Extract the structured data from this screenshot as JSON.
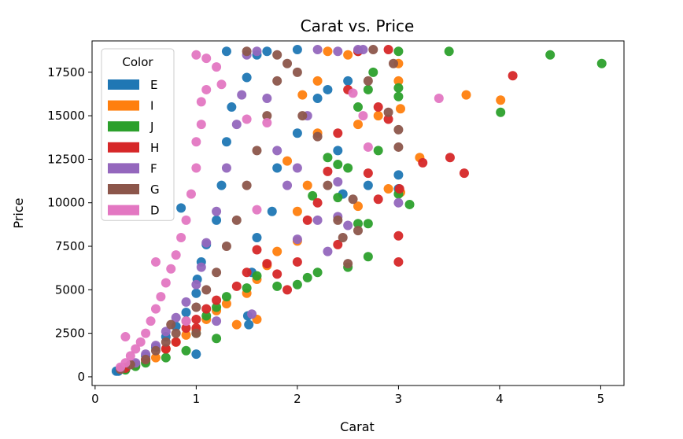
{
  "chart_data": {
    "type": "scatter",
    "title": "Carat vs. Price",
    "xlabel": "Carat",
    "ylabel": "Price",
    "xlim": [
      -0.03,
      5.23
    ],
    "ylim": [
      -500,
      19300
    ],
    "x_ticks": [
      0,
      1,
      2,
      3,
      4,
      5
    ],
    "x_tick_labels": [
      "0",
      "1",
      "2",
      "3",
      "4",
      "5"
    ],
    "y_ticks": [
      0,
      2500,
      5000,
      7500,
      10000,
      12500,
      15000,
      17500
    ],
    "y_tick_labels": [
      "0",
      "2500",
      "5000",
      "7500",
      "10000",
      "12500",
      "15000",
      "17500"
    ],
    "grid": false,
    "legend": {
      "title": "Color",
      "placement": "top-left"
    },
    "series": [
      {
        "name": "E",
        "color": "#1f77b4",
        "points": [
          [
            0.23,
            326
          ],
          [
            0.21,
            326
          ],
          [
            0.3,
            450
          ],
          [
            0.4,
            700
          ],
          [
            0.5,
            1200
          ],
          [
            0.6,
            1700
          ],
          [
            0.7,
            2300
          ],
          [
            0.8,
            2900
          ],
          [
            0.9,
            3700
          ],
          [
            1.0,
            4800
          ],
          [
            1.0,
            1300
          ],
          [
            1.01,
            5600
          ],
          [
            1.05,
            6600
          ],
          [
            1.1,
            7600
          ],
          [
            1.2,
            9000
          ],
          [
            1.25,
            11000
          ],
          [
            1.3,
            13500
          ],
          [
            1.35,
            15500
          ],
          [
            1.5,
            17200
          ],
          [
            1.6,
            18500
          ],
          [
            1.7,
            18700
          ],
          [
            1.3,
            18700
          ],
          [
            1.51,
            3500
          ],
          [
            1.52,
            3000
          ],
          [
            1.55,
            6000
          ],
          [
            1.6,
            8000
          ],
          [
            1.8,
            12000
          ],
          [
            2.0,
            14000
          ],
          [
            2.0,
            18800
          ],
          [
            2.2,
            16000
          ],
          [
            2.3,
            16500
          ],
          [
            2.4,
            13000
          ],
          [
            2.45,
            10500
          ],
          [
            2.5,
            17000
          ],
          [
            2.7,
            11000
          ],
          [
            3.0,
            11600
          ],
          [
            3.0,
            10800
          ],
          [
            0.85,
            9700
          ],
          [
            1.75,
            9500
          ]
        ]
      },
      {
        "name": "I",
        "color": "#ff7f0e",
        "points": [
          [
            0.3,
            550
          ],
          [
            0.4,
            650
          ],
          [
            0.5,
            900
          ],
          [
            0.6,
            1100
          ],
          [
            0.7,
            1600
          ],
          [
            0.8,
            2000
          ],
          [
            0.9,
            2400
          ],
          [
            1.0,
            2700
          ],
          [
            1.1,
            3300
          ],
          [
            1.2,
            3800
          ],
          [
            1.3,
            4200
          ],
          [
            1.5,
            4800
          ],
          [
            1.6,
            5600
          ],
          [
            1.7,
            6400
          ],
          [
            1.8,
            7200
          ],
          [
            2.0,
            7800
          ],
          [
            2.0,
            9500
          ],
          [
            2.1,
            11000
          ],
          [
            2.2,
            14000
          ],
          [
            2.2,
            17000
          ],
          [
            2.3,
            18700
          ],
          [
            2.5,
            18500
          ],
          [
            2.6,
            18700
          ],
          [
            2.6,
            14500
          ],
          [
            2.8,
            15000
          ],
          [
            2.9,
            10800
          ],
          [
            3.0,
            17000
          ],
          [
            3.0,
            18000
          ],
          [
            3.02,
            15400
          ],
          [
            3.02,
            10600
          ],
          [
            3.21,
            12600
          ],
          [
            3.67,
            16200
          ],
          [
            4.01,
            15900
          ],
          [
            2.6,
            9800
          ],
          [
            1.6,
            3300
          ],
          [
            1.4,
            3000
          ],
          [
            2.05,
            16200
          ],
          [
            1.9,
            12400
          ]
        ]
      },
      {
        "name": "J",
        "color": "#2ca02c",
        "points": [
          [
            0.3,
            400
          ],
          [
            0.4,
            600
          ],
          [
            0.5,
            800
          ],
          [
            0.7,
            1100
          ],
          [
            0.9,
            1500
          ],
          [
            1.0,
            2500
          ],
          [
            1.1,
            3500
          ],
          [
            1.2,
            4000
          ],
          [
            1.3,
            4600
          ],
          [
            1.5,
            5100
          ],
          [
            1.6,
            5800
          ],
          [
            1.8,
            5200
          ],
          [
            2.0,
            5300
          ],
          [
            2.1,
            5700
          ],
          [
            2.2,
            6000
          ],
          [
            2.5,
            6300
          ],
          [
            2.7,
            6900
          ],
          [
            2.6,
            8800
          ],
          [
            2.7,
            8800
          ],
          [
            2.4,
            10300
          ],
          [
            2.5,
            12000
          ],
          [
            2.6,
            15500
          ],
          [
            2.7,
            16500
          ],
          [
            2.75,
            17500
          ],
          [
            3.0,
            18700
          ],
          [
            3.0,
            16600
          ],
          [
            3.0,
            16100
          ],
          [
            3.11,
            9900
          ],
          [
            3.0,
            10500
          ],
          [
            3.5,
            18700
          ],
          [
            4.5,
            18500
          ],
          [
            5.01,
            18000
          ],
          [
            4.01,
            15200
          ],
          [
            2.3,
            12600
          ],
          [
            2.15,
            10400
          ],
          [
            1.2,
            2200
          ],
          [
            2.8,
            13000
          ],
          [
            2.4,
            12200
          ]
        ]
      },
      {
        "name": "H",
        "color": "#d62728",
        "points": [
          [
            0.3,
            500
          ],
          [
            0.5,
            1000
          ],
          [
            0.7,
            1600
          ],
          [
            0.8,
            2000
          ],
          [
            0.9,
            2800
          ],
          [
            1.0,
            3300
          ],
          [
            1.1,
            3900
          ],
          [
            1.2,
            4400
          ],
          [
            1.4,
            5200
          ],
          [
            1.5,
            6000
          ],
          [
            1.6,
            7300
          ],
          [
            1.7,
            6500
          ],
          [
            1.8,
            5900
          ],
          [
            1.9,
            5000
          ],
          [
            2.0,
            6600
          ],
          [
            2.1,
            9000
          ],
          [
            2.2,
            10000
          ],
          [
            2.3,
            11800
          ],
          [
            2.4,
            14000
          ],
          [
            2.5,
            16500
          ],
          [
            2.6,
            18700
          ],
          [
            2.8,
            15500
          ],
          [
            2.9,
            14800
          ],
          [
            3.0,
            8100
          ],
          [
            3.0,
            6600
          ],
          [
            3.01,
            10800
          ],
          [
            3.24,
            12300
          ],
          [
            3.51,
            12600
          ],
          [
            3.65,
            11700
          ],
          [
            4.13,
            17300
          ],
          [
            2.7,
            11700
          ],
          [
            2.9,
            18800
          ],
          [
            2.8,
            10200
          ],
          [
            2.4,
            7600
          ],
          [
            1.0,
            2800
          ]
        ]
      },
      {
        "name": "F",
        "color": "#9467bd",
        "points": [
          [
            0.25,
            450
          ],
          [
            0.4,
            800
          ],
          [
            0.5,
            1300
          ],
          [
            0.6,
            1800
          ],
          [
            0.7,
            2600
          ],
          [
            0.8,
            3400
          ],
          [
            0.9,
            4300
          ],
          [
            1.0,
            5300
          ],
          [
            1.05,
            6300
          ],
          [
            1.1,
            7700
          ],
          [
            1.2,
            9500
          ],
          [
            1.3,
            12000
          ],
          [
            1.4,
            14500
          ],
          [
            1.45,
            16200
          ],
          [
            1.5,
            18500
          ],
          [
            1.6,
            18700
          ],
          [
            1.7,
            16000
          ],
          [
            1.8,
            13000
          ],
          [
            1.9,
            11000
          ],
          [
            2.0,
            12000
          ],
          [
            2.1,
            15000
          ],
          [
            2.2,
            18800
          ],
          [
            2.4,
            18700
          ],
          [
            2.2,
            9000
          ],
          [
            2.4,
            9200
          ],
          [
            2.3,
            7200
          ],
          [
            2.4,
            11200
          ],
          [
            2.6,
            18800
          ],
          [
            3.0,
            10000
          ],
          [
            2.0,
            7900
          ],
          [
            2.5,
            8700
          ],
          [
            1.2,
            3200
          ],
          [
            1.55,
            3600
          ],
          [
            2.65,
            18800
          ]
        ]
      },
      {
        "name": "G",
        "color": "#8c564b",
        "points": [
          [
            0.25,
            430
          ],
          [
            0.35,
            700
          ],
          [
            0.5,
            1000
          ],
          [
            0.6,
            1500
          ],
          [
            0.7,
            2000
          ],
          [
            0.8,
            2500
          ],
          [
            0.9,
            3200
          ],
          [
            1.0,
            4000
          ],
          [
            1.1,
            5000
          ],
          [
            1.2,
            6000
          ],
          [
            1.3,
            7500
          ],
          [
            1.4,
            9000
          ],
          [
            1.5,
            11000
          ],
          [
            1.6,
            13000
          ],
          [
            1.7,
            15000
          ],
          [
            1.8,
            17000
          ],
          [
            1.9,
            18000
          ],
          [
            1.5,
            18700
          ],
          [
            1.8,
            18500
          ],
          [
            2.0,
            17500
          ],
          [
            2.05,
            15000
          ],
          [
            2.2,
            13800
          ],
          [
            2.3,
            11000
          ],
          [
            2.4,
            9000
          ],
          [
            2.45,
            8000
          ],
          [
            2.5,
            6500
          ],
          [
            2.55,
            10200
          ],
          [
            2.6,
            8400
          ],
          [
            2.75,
            18800
          ],
          [
            3.0,
            14200
          ],
          [
            3.0,
            13200
          ],
          [
            2.9,
            15200
          ],
          [
            2.95,
            18000
          ],
          [
            2.7,
            17000
          ],
          [
            1.0,
            2500
          ],
          [
            0.75,
            3000
          ]
        ]
      },
      {
        "name": "D",
        "color": "#e377c2",
        "points": [
          [
            0.25,
            550
          ],
          [
            0.3,
            800
          ],
          [
            0.35,
            1200
          ],
          [
            0.4,
            1600
          ],
          [
            0.45,
            2000
          ],
          [
            0.5,
            2500
          ],
          [
            0.55,
            3200
          ],
          [
            0.6,
            3900
          ],
          [
            0.65,
            4600
          ],
          [
            0.7,
            5400
          ],
          [
            0.75,
            6200
          ],
          [
            0.8,
            7000
          ],
          [
            0.85,
            8000
          ],
          [
            0.9,
            9000
          ],
          [
            0.95,
            10500
          ],
          [
            1.0,
            12000
          ],
          [
            1.0,
            13500
          ],
          [
            1.05,
            14500
          ],
          [
            1.05,
            15800
          ],
          [
            1.1,
            16500
          ],
          [
            1.0,
            18500
          ],
          [
            1.1,
            18300
          ],
          [
            1.2,
            17800
          ],
          [
            1.25,
            16800
          ],
          [
            1.5,
            14800
          ],
          [
            1.7,
            14600
          ],
          [
            1.6,
            9600
          ],
          [
            2.55,
            16300
          ],
          [
            2.65,
            15000
          ],
          [
            2.7,
            13200
          ],
          [
            3.4,
            16000
          ],
          [
            0.6,
            6600
          ],
          [
            0.9,
            3200
          ],
          [
            0.3,
            2300
          ]
        ]
      }
    ]
  }
}
